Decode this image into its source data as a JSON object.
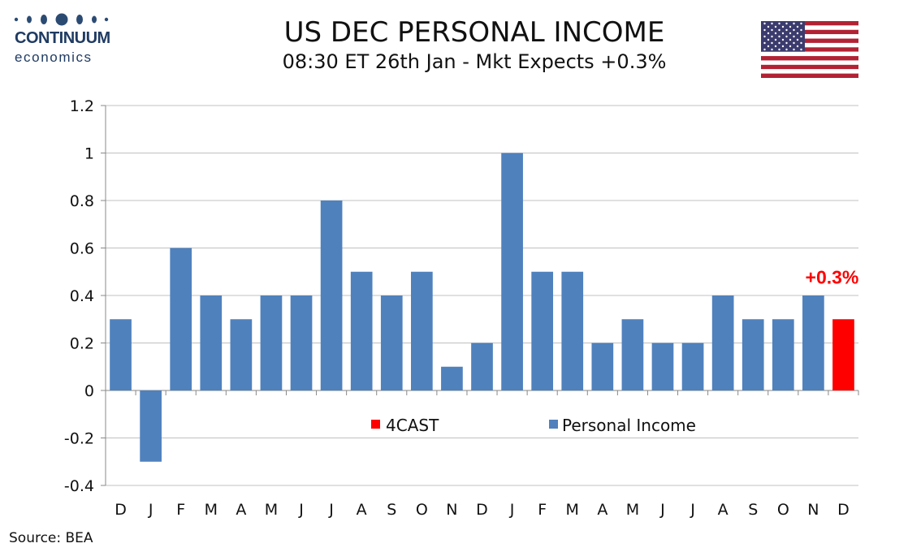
{
  "logo": {
    "brand": "CONTINUUM",
    "brand_sub": "economics"
  },
  "header": {
    "title": "US DEC PERSONAL INCOME",
    "subtitle": "08:30 ET 26th Jan - Mkt Expects +0.3%"
  },
  "source": "Source: BEA",
  "colors": {
    "personal_income": "#4f81bd",
    "forecast": "#ff0000",
    "grid": "#c0c0c0"
  },
  "flag_icon": "us-flag-icon",
  "chart_data": {
    "type": "bar",
    "categories": [
      "D",
      "J",
      "F",
      "M",
      "A",
      "M",
      "J",
      "J",
      "A",
      "S",
      "O",
      "N",
      "D",
      "J",
      "F",
      "M",
      "A",
      "M",
      "J",
      "J",
      "A",
      "S",
      "O",
      "N",
      "D"
    ],
    "series": [
      {
        "name": "Personal Income",
        "values": [
          0.3,
          -0.3,
          0.6,
          0.4,
          0.3,
          0.4,
          0.4,
          0.8,
          0.5,
          0.4,
          0.5,
          0.1,
          0.2,
          1.0,
          0.5,
          0.5,
          0.2,
          0.3,
          0.2,
          0.2,
          0.4,
          0.3,
          0.3,
          0.4,
          null
        ]
      },
      {
        "name": "4CAST",
        "values": [
          null,
          null,
          null,
          null,
          null,
          null,
          null,
          null,
          null,
          null,
          null,
          null,
          null,
          null,
          null,
          null,
          null,
          null,
          null,
          null,
          null,
          null,
          null,
          null,
          0.3
        ]
      }
    ],
    "yticks": [
      "-0.4",
      "-0.2",
      "0",
      "0.2",
      "0.4",
      "0.6",
      "0.8",
      "1",
      "1.2"
    ],
    "ylim": [
      -0.4,
      1.2
    ],
    "grid": true,
    "legend_position": "center",
    "annotation": {
      "text": "+0.3%",
      "category_index": 24
    },
    "title": "US DEC PERSONAL INCOME",
    "xlabel": "",
    "ylabel": ""
  }
}
